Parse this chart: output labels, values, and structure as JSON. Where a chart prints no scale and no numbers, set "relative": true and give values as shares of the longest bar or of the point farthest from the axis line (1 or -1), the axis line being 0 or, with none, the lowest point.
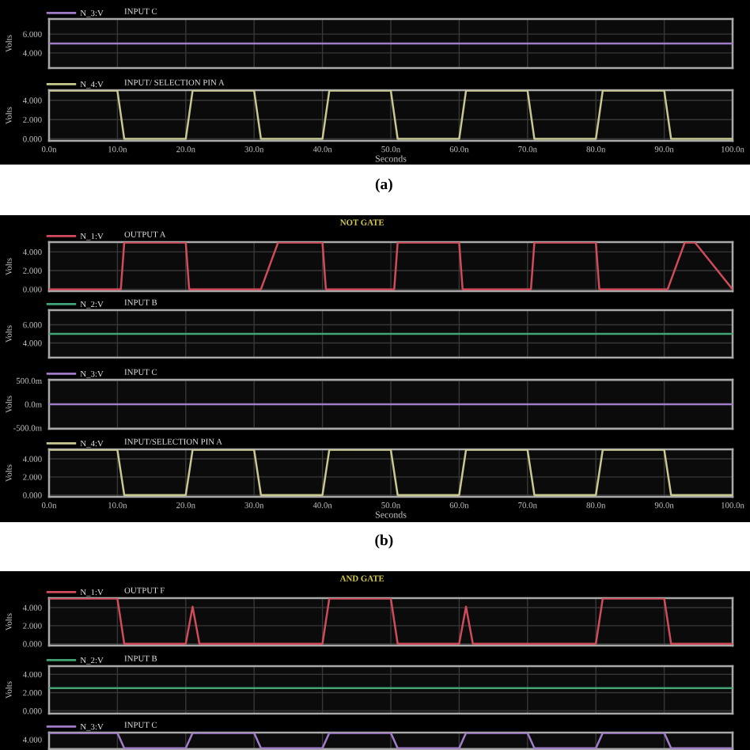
{
  "chart_data": [
    {
      "type": "line",
      "title": "INPUT C",
      "ylabel": "Volts",
      "series": [
        {
          "name": "N_3:V",
          "color": "#a07cc8",
          "x": [
            0,
            100
          ],
          "values": [
            5,
            5
          ]
        }
      ],
      "xlim": [
        0,
        100
      ],
      "xticks": [
        0,
        10,
        20,
        30,
        40,
        50,
        60,
        70,
        80,
        90,
        100
      ],
      "ylim": [
        2.4,
        7.6
      ],
      "yticks": [
        {
          "value": 6,
          "label": "6.000"
        },
        {
          "value": 4,
          "label": "4.000"
        }
      ],
      "grid": true,
      "legend": "top left",
      "tick_labels": "y"
    },
    {
      "type": "line",
      "title": "INPUT/ SELECTION PIN A",
      "xlabel": "Seconds",
      "ylabel": "Volts",
      "series": [
        {
          "name": "N_4:V",
          "color": "#c8c890",
          "x": [
            0,
            10,
            11,
            20,
            21,
            30,
            31,
            40,
            41,
            50,
            51,
            60,
            61,
            70,
            71,
            80,
            81,
            90,
            91,
            100
          ],
          "values": [
            5,
            5,
            0,
            0,
            5,
            5,
            0,
            0,
            5,
            5,
            0,
            0,
            5,
            5,
            0,
            0,
            5,
            5,
            0,
            0
          ]
        }
      ],
      "xlim": [
        0,
        100
      ],
      "xticks": [
        {
          "value": 0,
          "label": "0.0n"
        },
        {
          "value": 10,
          "label": "10.0n"
        },
        {
          "value": 20,
          "label": "20.0n"
        },
        {
          "value": 30,
          "label": "30.0n"
        },
        {
          "value": 40,
          "label": "40.0n"
        },
        {
          "value": 50,
          "label": "50.0n"
        },
        {
          "value": 60,
          "label": "60.0n"
        },
        {
          "value": 70,
          "label": "70.0n"
        },
        {
          "value": 80,
          "label": "80.0n"
        },
        {
          "value": 90,
          "label": "90.0n"
        },
        {
          "value": 100,
          "label": "100.0n"
        }
      ],
      "ylim": [
        -0.2,
        5.05
      ],
      "yticks": [
        {
          "value": 4,
          "label": "4.000"
        },
        {
          "value": 2,
          "label": "2.000"
        },
        {
          "value": 0,
          "label": "0.000"
        }
      ],
      "grid": true,
      "legend": "top left",
      "annotations": [
        "(a)"
      ]
    },
    {
      "type": "line",
      "title": "OUTPUT A",
      "ylabel": "Volts",
      "series": [
        {
          "name": "N_1:V",
          "color": "#d04c5a",
          "x": [
            0,
            10.5,
            11,
            20,
            20.5,
            31,
            33.5,
            40,
            40.5,
            50.5,
            51,
            60,
            60.5,
            70.5,
            71,
            80,
            80.5,
            90.5,
            93,
            94.5,
            100
          ],
          "values": [
            0,
            0,
            5,
            5,
            0,
            0,
            5,
            5,
            0,
            0,
            5,
            5,
            0,
            0,
            5,
            5,
            0,
            0,
            5,
            5,
            0
          ]
        }
      ],
      "xlim": [
        0,
        100
      ],
      "xticks": [
        0,
        10,
        20,
        30,
        40,
        50,
        60,
        70,
        80,
        90,
        100
      ],
      "ylim": [
        -0.2,
        5.05
      ],
      "yticks": [
        {
          "value": 4,
          "label": "4.000"
        },
        {
          "value": 2,
          "label": "2.000"
        },
        {
          "value": 0,
          "label": "0.000"
        }
      ],
      "grid": true,
      "legend": "top left",
      "tick_labels": "y",
      "annotations": [
        "NOT GATE"
      ]
    },
    {
      "type": "line",
      "title": "INPUT B",
      "ylabel": "Volts",
      "series": [
        {
          "name": "N_2:V",
          "color": "#40a474",
          "x": [
            0,
            100
          ],
          "values": [
            5,
            5
          ]
        }
      ],
      "xlim": [
        0,
        100
      ],
      "xticks": [
        0,
        10,
        20,
        30,
        40,
        50,
        60,
        70,
        80,
        90,
        100
      ],
      "ylim": [
        2.4,
        7.6
      ],
      "yticks": [
        {
          "value": 6,
          "label": "6.000"
        },
        {
          "value": 4,
          "label": "4.000"
        }
      ],
      "grid": true,
      "legend": "top left",
      "tick_labels": "y"
    },
    {
      "type": "line",
      "title": "INPUT C",
      "ylabel": "Volts",
      "series": [
        {
          "name": "N_3:V",
          "color": "#a07cc8",
          "x": [
            0,
            100
          ],
          "values": [
            0,
            0
          ]
        }
      ],
      "xlim": [
        0,
        100
      ],
      "xticks": [
        0,
        10,
        20,
        30,
        40,
        50,
        60,
        70,
        80,
        90,
        100
      ],
      "ylim": [
        -520,
        520
      ],
      "yticks": [
        {
          "value": 500,
          "label": "500.0m"
        },
        {
          "value": 0,
          "label": "0.0m"
        },
        {
          "value": -500,
          "label": "-500.0m"
        }
      ],
      "grid": true,
      "legend": "top left",
      "tick_labels": "y"
    },
    {
      "type": "line",
      "title": "INPUT/SELECTION PIN A",
      "xlabel": "Seconds",
      "ylabel": "Volts",
      "series": [
        {
          "name": "N_4:V",
          "color": "#c8c890",
          "x": [
            0,
            10,
            11,
            20,
            21,
            30,
            31,
            40,
            41,
            50,
            51,
            60,
            61,
            70,
            71,
            80,
            81,
            90,
            91,
            100
          ],
          "values": [
            5,
            5,
            0,
            0,
            5,
            5,
            0,
            0,
            5,
            5,
            0,
            0,
            5,
            5,
            0,
            0,
            5,
            5,
            0,
            0
          ]
        }
      ],
      "xlim": [
        0,
        100
      ],
      "xticks": [
        {
          "value": 0,
          "label": "0.0n"
        },
        {
          "value": 10,
          "label": "10.0n"
        },
        {
          "value": 20,
          "label": "20.0n"
        },
        {
          "value": 30,
          "label": "30.0n"
        },
        {
          "value": 40,
          "label": "40.0n"
        },
        {
          "value": 50,
          "label": "50.0n"
        },
        {
          "value": 60,
          "label": "60.0n"
        },
        {
          "value": 70,
          "label": "70.0n"
        },
        {
          "value": 80,
          "label": "80.0n"
        },
        {
          "value": 90,
          "label": "90.0n"
        },
        {
          "value": 100,
          "label": "100.0n"
        }
      ],
      "ylim": [
        -0.2,
        5.05
      ],
      "yticks": [
        {
          "value": 4,
          "label": "4.000"
        },
        {
          "value": 2,
          "label": "2.000"
        },
        {
          "value": 0,
          "label": "0.000"
        }
      ],
      "grid": true,
      "legend": "top left",
      "annotations": [
        "(b)"
      ]
    },
    {
      "type": "line",
      "title": "OUTPUT F",
      "ylabel": "Volts",
      "categories": [
        null,
        null,
        null,
        null,
        null,
        null,
        null,
        null,
        null,
        null,
        null,
        null,
        null,
        null,
        null,
        null,
        null,
        null,
        null,
        null,
        null,
        null,
        null,
        null,
        null,
        null,
        null,
        null,
        null,
        null,
        null,
        null,
        null,
        null,
        null,
        null,
        null,
        null,
        null,
        null,
        null,
        null,
        null,
        null,
        null,
        null,
        null,
        null,
        null,
        null,
        null,
        null,
        null,
        null,
        null,
        null,
        null,
        null,
        null,
        null,
        null,
        null,
        null,
        null,
        null,
        null,
        null,
        null,
        null,
        null,
        null,
        null,
        null,
        null,
        null,
        null,
        null,
        null,
        null,
        null,
        null,
        null,
        null,
        null,
        null,
        null,
        null,
        null,
        null,
        null,
        null,
        null,
        null,
        null,
        null,
        null,
        null,
        null,
        null,
        null,
        null
      ],
      "series": [
        {
          "name": "N_1:V",
          "color": "#d04c5a",
          "values": [
            5,
            5,
            5,
            5,
            5,
            5,
            5,
            5,
            5,
            5,
            5,
            0,
            0,
            0,
            0,
            0,
            0,
            0,
            0,
            0,
            0,
            4.1,
            0,
            0,
            0,
            0,
            0,
            0,
            0,
            0,
            0,
            0,
            0,
            0,
            0,
            0,
            0,
            0,
            0,
            0,
            0,
            5,
            5,
            5,
            5,
            5,
            5,
            5,
            5,
            5,
            5,
            0,
            0,
            0,
            0,
            0,
            0,
            0,
            0,
            0,
            0,
            4.1,
            0,
            0,
            0,
            0,
            0,
            0,
            0,
            0,
            0,
            0,
            0,
            0,
            0,
            0,
            0,
            0,
            0,
            0,
            0,
            5,
            5,
            5,
            5,
            5,
            5,
            5,
            5,
            5,
            5,
            0,
            0,
            0,
            0,
            0,
            0,
            0,
            0,
            0,
            0
          ]
        }
      ],
      "ylim": [
        -0.2,
        5.05
      ],
      "yticks": [
        {
          "value": 4,
          "label": "4.000"
        },
        {
          "value": 2,
          "label": "2.000"
        },
        {
          "value": 0,
          "label": "0.000"
        }
      ],
      "grid": true,
      "legend": "top left",
      "annotations": [
        "AND GATE"
      ]
    },
    {
      "type": "line",
      "title": "INPUT B",
      "ylabel": "Volts",
      "categories": [
        null,
        null,
        null,
        null,
        null,
        null,
        null,
        null,
        null,
        null,
        null,
        null,
        null,
        null,
        null,
        null,
        null,
        null,
        null,
        null,
        null,
        null,
        null,
        null,
        null,
        null,
        null,
        null,
        null,
        null,
        null,
        null,
        null,
        null,
        null,
        null,
        null,
        null,
        null,
        null,
        null,
        null,
        null,
        null,
        null,
        null,
        null,
        null,
        null,
        null,
        null,
        null,
        null,
        null,
        null,
        null,
        null,
        null,
        null,
        null,
        null,
        null,
        null,
        null,
        null,
        null,
        null,
        null,
        null,
        null,
        null,
        null,
        null,
        null,
        null,
        null,
        null,
        null,
        null,
        null,
        null,
        null,
        null,
        null,
        null,
        null,
        null,
        null,
        null,
        null,
        null,
        null,
        null,
        null,
        null,
        null,
        null,
        null,
        null,
        null,
        null
      ],
      "series": [
        {
          "name": "N_2:V",
          "color": "#40a474",
          "values": [
            2.5,
            2.5,
            2.5,
            2.5,
            2.5,
            2.5,
            2.5,
            2.5,
            2.5,
            2.5,
            2.5,
            2.5,
            2.5,
            2.5,
            2.5,
            2.5,
            2.5,
            2.5,
            2.5,
            2.5,
            2.5,
            2.5,
            2.5,
            2.5,
            2.5,
            2.5,
            2.5,
            2.5,
            2.5,
            2.5,
            2.5,
            2.5,
            2.5,
            2.5,
            2.5,
            2.5,
            2.5,
            2.5,
            2.5,
            2.5,
            2.5,
            2.5,
            2.5,
            2.5,
            2.5,
            2.5,
            2.5,
            2.5,
            2.5,
            2.5,
            2.5,
            2.5,
            2.5,
            2.5,
            2.5,
            2.5,
            2.5,
            2.5,
            2.5,
            2.5,
            2.5,
            2.5,
            2.5,
            2.5,
            2.5,
            2.5,
            2.5,
            2.5,
            2.5,
            2.5,
            2.5,
            2.5,
            2.5,
            2.5,
            2.5,
            2.5,
            2.5,
            2.5,
            2.5,
            2.5,
            2.5,
            2.5,
            2.5,
            2.5,
            2.5,
            2.5,
            2.5,
            2.5,
            2.5,
            2.5,
            2.5,
            2.5,
            2.5,
            2.5,
            2.5,
            2.5,
            2.5,
            2.5,
            2.5,
            2.5,
            2.5
          ]
        }
      ],
      "ylim": [
        -0.3,
        4.9
      ],
      "yticks": [
        {
          "value": 4,
          "label": "4.000"
        },
        {
          "value": 2,
          "label": "2.000"
        },
        {
          "value": 0,
          "label": "0.000"
        }
      ],
      "grid": true,
      "legend": "top left"
    },
    {
      "type": "line",
      "title": "INPUT C",
      "relative": true,
      "categories": [
        null,
        null,
        null,
        null,
        null,
        null,
        null,
        null,
        null,
        null,
        null,
        null,
        null,
        null,
        null,
        null,
        null,
        null,
        null,
        null,
        null,
        null,
        null,
        null,
        null,
        null,
        null,
        null,
        null,
        null,
        null,
        null,
        null,
        null,
        null,
        null,
        null,
        null,
        null,
        null,
        null,
        null,
        null,
        null,
        null,
        null,
        null,
        null,
        null,
        null,
        null,
        null,
        null,
        null,
        null,
        null,
        null,
        null,
        null,
        null,
        null,
        null,
        null,
        null,
        null,
        null,
        null,
        null,
        null,
        null,
        null,
        null,
        null,
        null,
        null,
        null,
        null,
        null,
        null,
        null,
        null,
        null,
        null,
        null,
        null,
        null,
        null,
        null,
        null,
        null,
        null,
        null,
        null,
        null,
        null,
        null,
        null,
        null,
        null,
        null,
        null
      ],
      "series": [
        {
          "name": "N_3:V",
          "color": "#a07cc8",
          "values": [
            1,
            1,
            1,
            1,
            1,
            1,
            1,
            1,
            1,
            1,
            1,
            0,
            0,
            0,
            0,
            0,
            0,
            0,
            0,
            0,
            0,
            1,
            1,
            1,
            1,
            1,
            1,
            1,
            1,
            1,
            1,
            0,
            0,
            0,
            0,
            0,
            0,
            0,
            0,
            0,
            0,
            1,
            1,
            1,
            1,
            1,
            1,
            1,
            1,
            1,
            1,
            0,
            0,
            0,
            0,
            0,
            0,
            0,
            0,
            0,
            0,
            1,
            1,
            1,
            1,
            1,
            1,
            1,
            1,
            1,
            1,
            0,
            0,
            0,
            0,
            0,
            0,
            0,
            0,
            0,
            0,
            1,
            1,
            1,
            1,
            1,
            1,
            1,
            1,
            1,
            1,
            0,
            0,
            0,
            0,
            0,
            0,
            0,
            0,
            0,
            0
          ]
        }
      ],
      "grid": "x",
      "legend": "top left",
      "annotations": [
        "4.000"
      ]
    }
  ]
}
